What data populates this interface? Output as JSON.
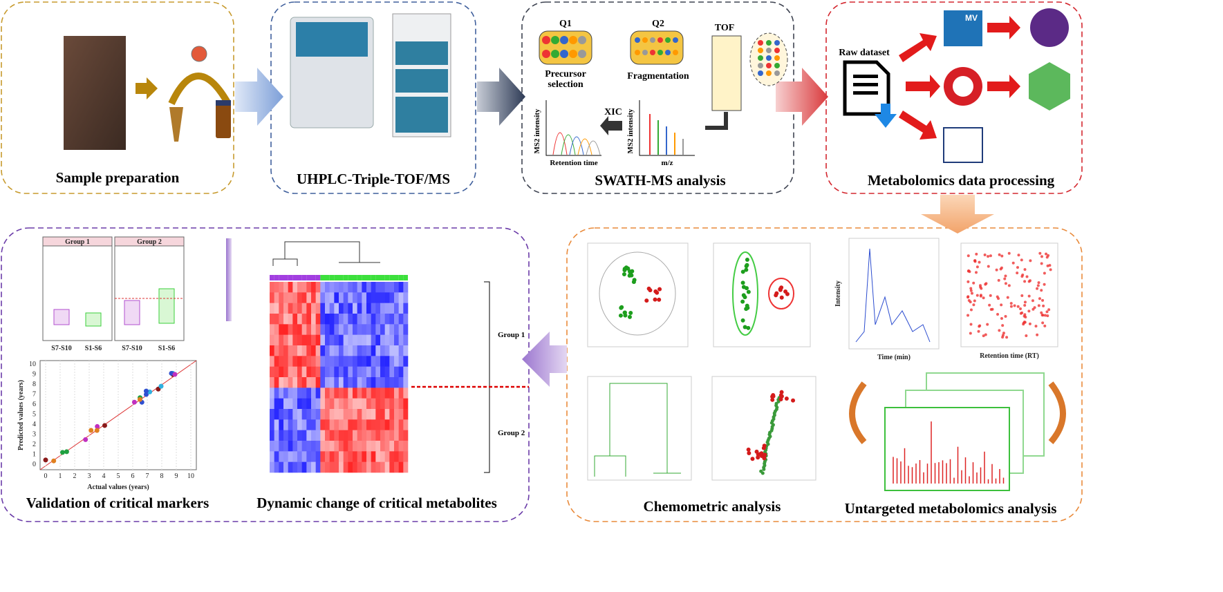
{
  "sample_preparation": {
    "title": "Sample preparation"
  },
  "uhplc": {
    "title": "UHPLC-Triple-TOF/MS"
  },
  "swath": {
    "title": "SWATH-MS analysis",
    "q1": "Q1",
    "q2": "Q2",
    "tof": "TOF",
    "precursor": [
      "Precursor",
      "selection"
    ],
    "fragmentation": "Fragmentation",
    "xic": "XIC",
    "ms2_intensity": "MS2 intensity",
    "retention_time": "Retention time",
    "mz": "m/z"
  },
  "processing": {
    "title": "Metabolomics data processing",
    "raw_dataset": "Raw dataset",
    "mv": "MV"
  },
  "validation": {
    "title": "Validation of critical markers",
    "groups": [
      "Group 1",
      "Group 2"
    ],
    "box_categories": [
      "S7-S10",
      "S1-S6",
      "S7-S10",
      "S1-S6"
    ],
    "x_label": "Actual values (years)",
    "y_label": "Predicted values (years)",
    "ticks": [
      0,
      1,
      2,
      3,
      4,
      5,
      6,
      7,
      8,
      9,
      10
    ]
  },
  "dynamic": {
    "title": "Dynamic change of critical metabolites",
    "groups": [
      "Group 1",
      "Group 2"
    ]
  },
  "chemometric": {
    "title": "Chemometric analysis"
  },
  "untargeted": {
    "title": "Untargeted metabolomics analysis",
    "time_label": "Time (min)",
    "rt_label": "Retention time (RT)",
    "intensity_label": "Intensity"
  }
}
